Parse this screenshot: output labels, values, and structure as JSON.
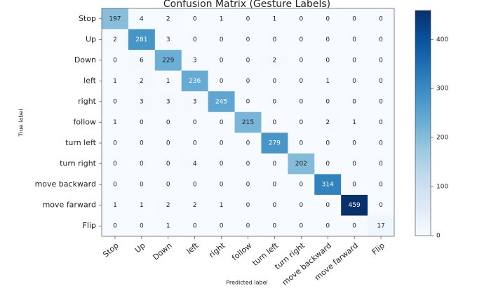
{
  "chart_data": {
    "type": "heatmap",
    "title": "Confusion Matrix (Gesture Labels)",
    "x_label": "Predicted label",
    "y_label": "True label",
    "x_categories": [
      "Stop",
      "Up",
      "Down",
      "left",
      "right",
      "follow",
      "turn left",
      "turn right",
      "move backward",
      "move farward",
      "Flip"
    ],
    "y_categories": [
      "Stop",
      "Up",
      "Down",
      "left",
      "right",
      "follow",
      "turn left",
      "turn right",
      "move backward",
      "move farward",
      "Flip"
    ],
    "values": [
      [
        197,
        4,
        2,
        0,
        1,
        0,
        1,
        0,
        0,
        0,
        0
      ],
      [
        2,
        281,
        3,
        0,
        0,
        0,
        0,
        0,
        0,
        0,
        0
      ],
      [
        0,
        6,
        229,
        3,
        0,
        0,
        2,
        0,
        0,
        0,
        0
      ],
      [
        1,
        2,
        1,
        236,
        0,
        0,
        0,
        0,
        1,
        0,
        0
      ],
      [
        0,
        3,
        3,
        3,
        245,
        0,
        0,
        0,
        0,
        0,
        0
      ],
      [
        1,
        0,
        0,
        0,
        0,
        215,
        0,
        0,
        2,
        1,
        0
      ],
      [
        0,
        0,
        0,
        0,
        0,
        0,
        279,
        0,
        0,
        0,
        0
      ],
      [
        0,
        0,
        0,
        4,
        0,
        0,
        0,
        202,
        0,
        0,
        0
      ],
      [
        0,
        0,
        0,
        0,
        0,
        0,
        0,
        0,
        314,
        0,
        0
      ],
      [
        1,
        1,
        2,
        2,
        1,
        0,
        0,
        0,
        0,
        459,
        0
      ],
      [
        0,
        0,
        1,
        0,
        0,
        0,
        0,
        0,
        0,
        0,
        17
      ]
    ],
    "colormap": "Blues",
    "zlim": [
      0,
      459
    ],
    "zticks": [
      0,
      100,
      200,
      300,
      400
    ]
  }
}
